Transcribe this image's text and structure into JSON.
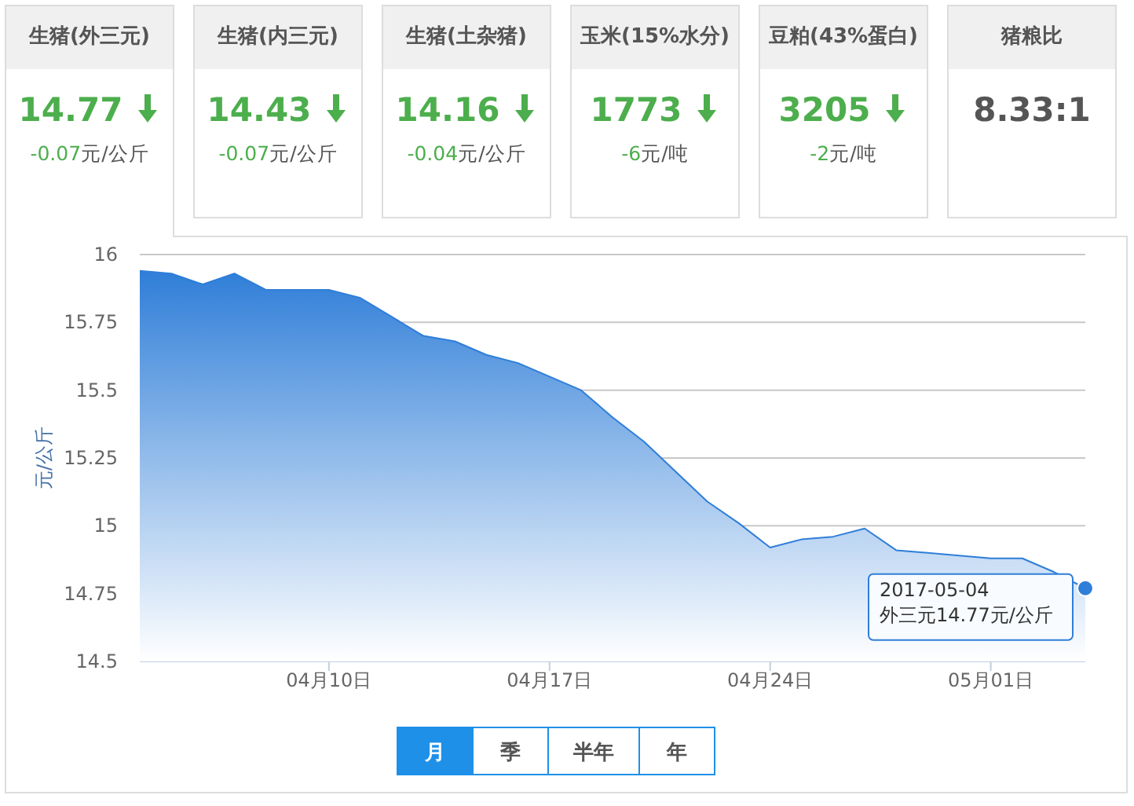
{
  "chart_data": [
    {
      "type": "other",
      "title": "生猪(外三元)",
      "subtitle": "14.77",
      "annotations": [
        "-0.07元/公斤"
      ],
      "color": "#4cae4c"
    },
    {
      "type": "other",
      "title": "生猪(内三元)",
      "subtitle": "14.43",
      "annotations": [
        "-0.07元/公斤"
      ],
      "color": "#4cae4c"
    },
    {
      "type": "other",
      "title": "生猪(土杂猪)",
      "subtitle": "14.16",
      "annotations": [
        "-0.04元/公斤"
      ],
      "color": "#4cae4c"
    },
    {
      "type": "other",
      "title": "玉米(15%水分)",
      "subtitle": "1773",
      "annotations": [
        "-6元/吨"
      ],
      "color": "#4cae4c"
    },
    {
      "type": "other",
      "title": "豆粕(43%蛋白)",
      "subtitle": "3205",
      "annotations": [
        "-2元/吨"
      ],
      "color": "#4cae4c"
    },
    {
      "type": "other",
      "title": "猪粮比",
      "subtitle": "8.33:1",
      "color": "#555555"
    },
    {
      "type": "area",
      "ylabel": "元/公斤",
      "color": "#2f7ed8",
      "grid": "y",
      "xlim": [
        "--04-04",
        "--05-04"
      ],
      "ylim": [
        14.5,
        16
      ],
      "yticks": [
        14.5,
        14.75,
        15,
        15.25,
        15.5,
        15.75,
        16
      ],
      "xticks": [
        {
          "value": "--04-10",
          "label": "04月10日"
        },
        {
          "value": "--04-17",
          "label": "04月17日"
        },
        {
          "value": "--04-24",
          "label": "04月24日"
        },
        {
          "value": "--05-01",
          "label": "05月01日"
        }
      ],
      "x": [
        "--04-04",
        "--04-05",
        "--04-06",
        "--04-07",
        "--04-08",
        "--04-09",
        "--04-10",
        "--04-11",
        "--04-12",
        "--04-13",
        "--04-14",
        "--04-15",
        "--04-16",
        "--04-17",
        "--04-18",
        "--04-19",
        "--04-20",
        "--04-21",
        "--04-22",
        "--04-23",
        "--04-24",
        "--04-25",
        "--04-26",
        "--04-27",
        "--04-28",
        "--04-29",
        "--04-30",
        "--05-01",
        "--05-02",
        "--05-03",
        "--05-04"
      ],
      "values": [
        15.94,
        15.93,
        15.89,
        15.93,
        15.87,
        15.87,
        15.87,
        15.84,
        15.77,
        15.7,
        15.68,
        15.63,
        15.6,
        15.55,
        15.5,
        15.4,
        15.31,
        15.2,
        15.09,
        15.01,
        14.92,
        14.95,
        14.96,
        14.99,
        14.91,
        14.9,
        14.89,
        14.88,
        14.88,
        14.83,
        14.77
      ],
      "annotations": [
        "2017-05-04",
        {
          "text": "外三元14.77元/公斤",
          "x": "--05-04",
          "y": 14.77
        },
        "月",
        "季",
        "半年",
        "年"
      ]
    }
  ]
}
